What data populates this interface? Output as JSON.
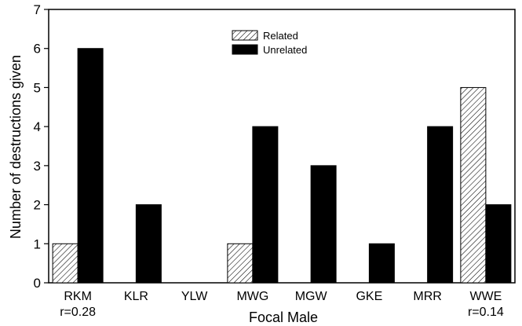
{
  "chart_data": {
    "type": "bar",
    "title": "",
    "xlabel": "Focal Male",
    "ylabel": "Number of destructions given",
    "ylim": [
      0,
      7
    ],
    "yticks": [
      0,
      1,
      2,
      3,
      4,
      5,
      6,
      7
    ],
    "categories": [
      "RKM",
      "KLR",
      "YLW",
      "MWG",
      "MGW",
      "GKE",
      "MRR",
      "WWE"
    ],
    "category_notes": [
      "r=0.28",
      "",
      "",
      "",
      "",
      "",
      "",
      "r=0.14"
    ],
    "series": [
      {
        "name": "Related",
        "pattern": "diagonal-hatch",
        "color": "#ffffff",
        "values": [
          1,
          0,
          0,
          1,
          0,
          0,
          0,
          5
        ]
      },
      {
        "name": "Unrelated",
        "pattern": "solid",
        "color": "#000000",
        "values": [
          6,
          2,
          0,
          4,
          3,
          1,
          4,
          2
        ]
      }
    ],
    "legend_position": "top-center",
    "grid": false
  }
}
